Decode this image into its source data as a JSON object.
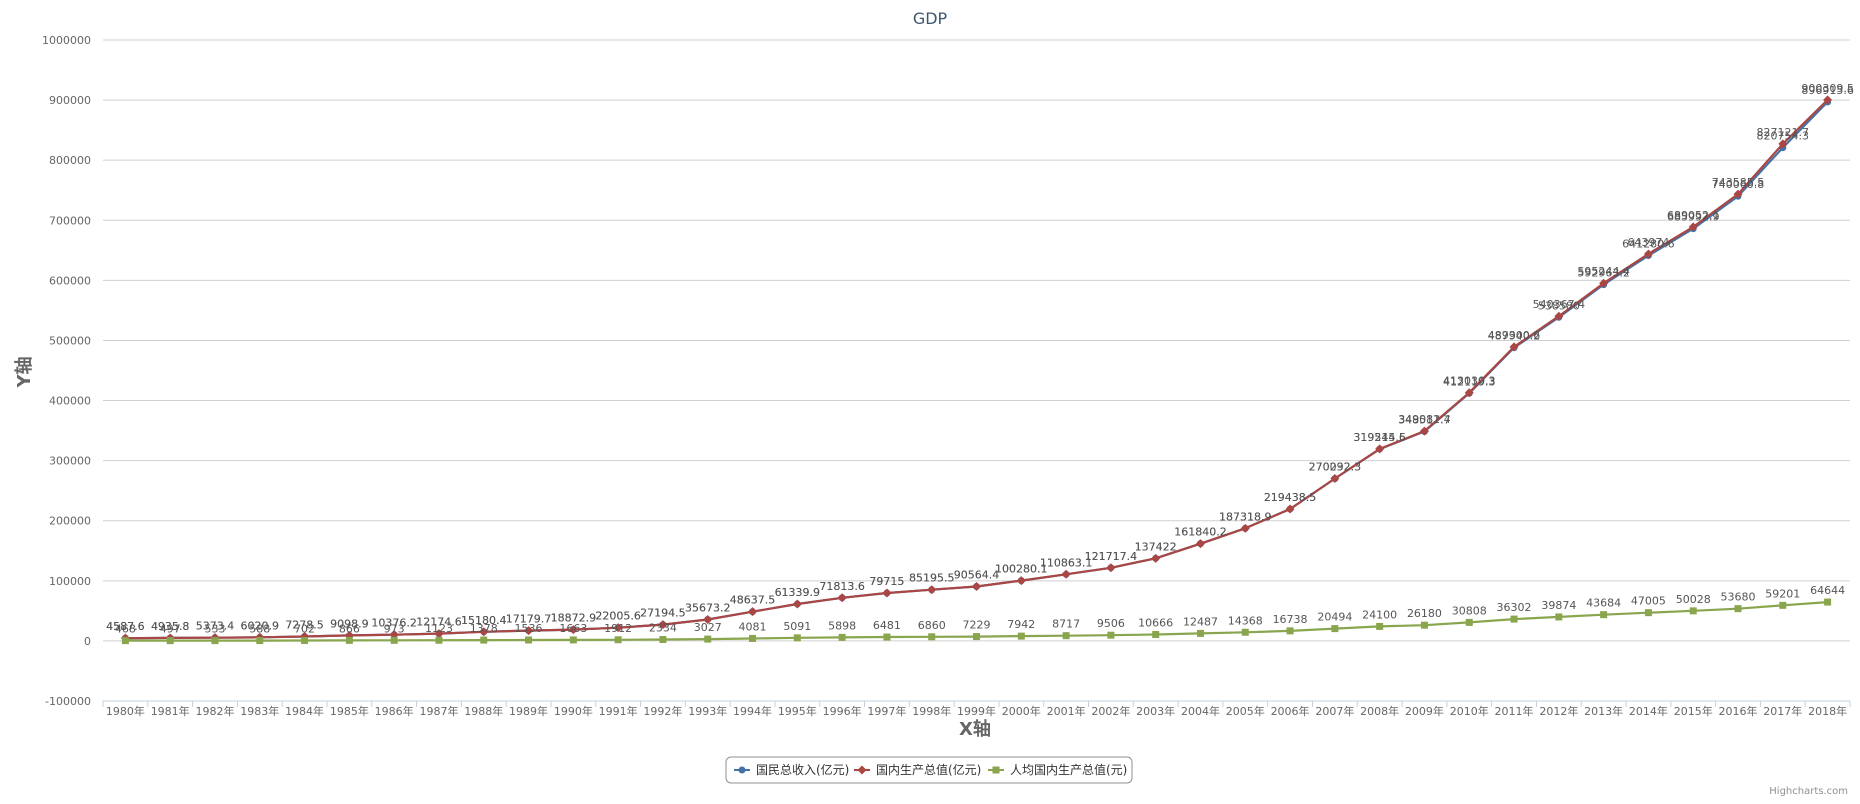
{
  "chart_data": {
    "type": "line",
    "title": "GDP",
    "xlabel": "X轴",
    "ylabel": "Y轴",
    "ylim": [
      -100000,
      1000000
    ],
    "ytick_step": 100000,
    "grid": true,
    "legend_position": "bottom-center",
    "credits": "Highcharts.com",
    "categories": [
      "1980年",
      "1981年",
      "1982年",
      "1983年",
      "1984年",
      "1985年",
      "1986年",
      "1987年",
      "1988年",
      "1989年",
      "1990年",
      "1991年",
      "1992年",
      "1993年",
      "1994年",
      "1995年",
      "1996年",
      "1997年",
      "1998年",
      "1999年",
      "2000年",
      "2001年",
      "2002年",
      "2003年",
      "2004年",
      "2005年",
      "2006年",
      "2007年",
      "2008年",
      "2009年",
      "2010年",
      "2011年",
      "2012年",
      "2013年",
      "2014年",
      "2015年",
      "2016年",
      "2017年",
      "2018年"
    ],
    "series": [
      {
        "name": "国民总收入(亿元)",
        "color": "#4572A7",
        "marker": "circle",
        "values": [
          4587.6,
          4935.8,
          5373.4,
          6020.9,
          7278.5,
          9098.9,
          10376.2,
          12174.6,
          15180.4,
          17179.7,
          18872.9,
          22005.6,
          27194.5,
          35673.2,
          48637.5,
          61339.9,
          71813.6,
          79715.0,
          85195.5,
          90564.4,
          100280.1,
          110863.1,
          121717.4,
          137422.0,
          161840.2,
          187318.9,
          219438.5,
          270092.3,
          319244.6,
          348517.7,
          412119.3,
          487940.2,
          538580.0,
          592963.2,
          641280.6,
          685992.9,
          740060.8,
          820754.3,
          896915.6
        ]
      },
      {
        "name": "国内生产总值(亿元)",
        "color": "#AA4643",
        "marker": "diamond",
        "values": [
          4587.6,
          4935.8,
          5373.4,
          6020.9,
          7278.5,
          9098.9,
          10376.2,
          12174.6,
          15180.4,
          17179.7,
          18872.9,
          22005.6,
          27194.5,
          35673.2,
          48637.5,
          61339.9,
          71813.6,
          79715.0,
          85195.5,
          90564.4,
          100280.1,
          110863.1,
          121717.4,
          137422.0,
          161840.2,
          187318.9,
          219438.5,
          270232.3,
          319515.5,
          349081.4,
          413030.3,
          489300.6,
          540367.4,
          595244.4,
          643974.0,
          689052.1,
          743585.5,
          827121.7,
          900309.5
        ]
      },
      {
        "name": "人均国内生产总值(元)",
        "color": "#89A54E",
        "marker": "square",
        "values": [
          468,
          497,
          533,
          588,
          702,
          866,
          973,
          1123,
          1378,
          1536,
          1663,
          1912,
          2334,
          3027,
          4081,
          5091,
          5898,
          6481,
          6860,
          7229,
          7942,
          8717,
          9506,
          10666,
          12487,
          14368,
          16738,
          20494,
          24100,
          26180,
          30808,
          36302,
          39874,
          43684,
          47005,
          50028,
          53680,
          59201,
          64644
        ]
      }
    ]
  }
}
